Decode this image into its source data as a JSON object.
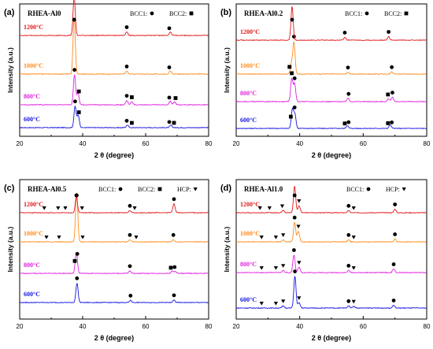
{
  "chart_data": [
    {
      "type": "line",
      "panel_label": "(a)",
      "sample": "RHEA-Al0",
      "xlabel": "2 θ (degree)",
      "ylabel": "Intensity (a.u.)",
      "xlim": [
        20,
        80
      ],
      "xticks": [
        20,
        40,
        60,
        80
      ],
      "legend_text": [
        "BCC1:",
        "BCC2:"
      ],
      "series": [
        {
          "name": "600°C",
          "color": "#1515e0",
          "peaks": [
            [
              37.6,
              0.6
            ],
            [
              38.6,
              0.35
            ],
            [
              54.2,
              0.07
            ],
            [
              68.0,
              0.07
            ]
          ],
          "markers": [
            [
              37.6,
              "circle"
            ],
            [
              38.8,
              "square"
            ],
            [
              54.0,
              "circle"
            ],
            [
              55.6,
              "square"
            ],
            [
              67.5,
              "circle"
            ],
            [
              69.0,
              "square"
            ]
          ]
        },
        {
          "name": "800°C",
          "color": "#e020e0",
          "peaks": [
            [
              37.4,
              0.85
            ],
            [
              38.5,
              0.35
            ],
            [
              54.0,
              0.12
            ],
            [
              55.6,
              0.08
            ],
            [
              67.8,
              0.1
            ],
            [
              69.2,
              0.08
            ]
          ],
          "markers": [
            [
              37.4,
              "circle"
            ],
            [
              38.8,
              "square"
            ],
            [
              54.0,
              "circle"
            ],
            [
              55.6,
              "square"
            ],
            [
              67.5,
              "circle"
            ],
            [
              69.5,
              "square"
            ]
          ]
        },
        {
          "name": "1000°C",
          "color": "#ff8c1a",
          "peaks": [
            [
              37.3,
              1.6
            ],
            [
              54.0,
              0.08
            ],
            [
              67.8,
              0.08
            ]
          ],
          "markers": [
            [
              37.3,
              "circle"
            ],
            [
              54.0,
              "circle"
            ],
            [
              67.5,
              "circle"
            ]
          ]
        },
        {
          "name": "1200°C",
          "color": "#e01818",
          "peaks": [
            [
              37.3,
              1.1
            ],
            [
              54.0,
              0.1
            ],
            [
              67.8,
              0.1
            ]
          ],
          "markers": [
            [
              37.3,
              "circle"
            ],
            [
              54.0,
              "circle"
            ],
            [
              67.5,
              "circle"
            ]
          ]
        }
      ]
    },
    {
      "type": "line",
      "panel_label": "(b)",
      "sample": "RHEA-Al0.2",
      "xlabel": "2 θ (degree)",
      "ylabel": "Intensity (a.u.)",
      "xlim": [
        20,
        80
      ],
      "xticks": [
        20,
        40,
        60,
        80
      ],
      "legend_text": [
        "BCC1:",
        "BCC2:"
      ],
      "series": [
        {
          "name": "600°C",
          "color": "#1515e0",
          "peaks": [
            [
              37.7,
              0.55
            ],
            [
              38.5,
              0.4
            ],
            [
              55.0,
              0.08
            ],
            [
              68.5,
              0.1
            ]
          ],
          "markers": [
            [
              37.2,
              "square"
            ],
            [
              38.4,
              "circle"
            ],
            [
              54.2,
              "square"
            ],
            [
              55.4,
              "circle"
            ],
            [
              67.8,
              "square"
            ],
            [
              69.0,
              "circle"
            ]
          ]
        },
        {
          "name": "800°C",
          "color": "#e020e0",
          "peaks": [
            [
              37.5,
              0.65
            ],
            [
              38.4,
              0.5
            ],
            [
              55.2,
              0.1
            ],
            [
              68.0,
              0.08
            ],
            [
              69.2,
              0.12
            ]
          ],
          "markers": [
            [
              37.5,
              "square"
            ],
            [
              38.4,
              "circle"
            ],
            [
              55.4,
              "circle"
            ],
            [
              67.8,
              "square"
            ],
            [
              69.2,
              "circle"
            ]
          ]
        },
        {
          "name": "1000°C",
          "color": "#ff8c1a",
          "peaks": [
            [
              37.4,
              0.3
            ],
            [
              38.2,
              0.9
            ],
            [
              55.2,
              0.05
            ],
            [
              69.0,
              0.06
            ]
          ],
          "markers": [
            [
              36.8,
              "square"
            ],
            [
              38.2,
              "circle"
            ],
            [
              55.2,
              "circle"
            ],
            [
              69.0,
              "circle"
            ]
          ]
        },
        {
          "name": "1200°C",
          "color": "#e01818",
          "peaks": [
            [
              37.6,
              0.95
            ],
            [
              54.2,
              0.08
            ],
            [
              68.0,
              0.1
            ]
          ],
          "markers": [
            [
              37.6,
              "circle"
            ],
            [
              54.2,
              "circle"
            ],
            [
              68.0,
              "circle"
            ]
          ]
        }
      ]
    },
    {
      "type": "line",
      "panel_label": "(c)",
      "sample": "RHEA-Al0.5",
      "xlabel": "2 θ (degree)",
      "ylabel": "Intensity (a.u.)",
      "xlim": [
        20,
        80
      ],
      "xticks": [
        20,
        40,
        60,
        80
      ],
      "legend_text": [
        "BCC1:",
        "BCC2:",
        "HCP:"
      ],
      "series": [
        {
          "name": "600°C",
          "color": "#1515e0",
          "peaks": [
            [
              38.2,
              0.55
            ],
            [
              55.2,
              0.06
            ],
            [
              69.0,
              0.07
            ]
          ],
          "markers": [
            [
              38.2,
              "circle"
            ],
            [
              55.2,
              "circle"
            ],
            [
              69.0,
              "circle"
            ]
          ]
        },
        {
          "name": "800°C",
          "color": "#e020e0",
          "peaks": [
            [
              38.0,
              0.6
            ],
            [
              55.0,
              0.07
            ],
            [
              68.5,
              0.07
            ],
            [
              69.5,
              0.05
            ]
          ],
          "markers": [
            [
              37.5,
              "square"
            ],
            [
              38.3,
              "circle"
            ],
            [
              55.0,
              "circle"
            ],
            [
              68.0,
              "square"
            ],
            [
              69.2,
              "circle"
            ]
          ]
        },
        {
          "name": "1000°C",
          "color": "#ff8c1a",
          "peaks": [
            [
              38.1,
              1.4
            ],
            [
              55.0,
              0.06
            ],
            [
              68.8,
              0.06
            ]
          ],
          "markers": [
            [
              28.5,
              "triangle"
            ],
            [
              32.5,
              "triangle"
            ],
            [
              38.1,
              "circle"
            ],
            [
              40.0,
              "triangle"
            ],
            [
              55.0,
              "circle"
            ],
            [
              57.0,
              "triangle"
            ],
            [
              68.8,
              "circle"
            ]
          ]
        },
        {
          "name": "1200°C",
          "color": "#e01818",
          "peaks": [
            [
              38.0,
              0.45
            ],
            [
              55.0,
              0.06
            ],
            [
              69.0,
              0.25
            ]
          ],
          "markers": [
            [
              27.8,
              "triangle"
            ],
            [
              32.2,
              "triangle"
            ],
            [
              34.5,
              "triangle"
            ],
            [
              38.0,
              "circle"
            ],
            [
              39.8,
              "triangle"
            ],
            [
              55.0,
              "circle"
            ],
            [
              56.5,
              "triangle"
            ],
            [
              69.0,
              "circle"
            ]
          ]
        }
      ]
    },
    {
      "type": "line",
      "panel_label": "(d)",
      "sample": "RHEA-Al1.0",
      "xlabel": "2 θ (degree)",
      "ylabel": "Intensity (a.u.)",
      "xlim": [
        20,
        80
      ],
      "xticks": [
        20,
        40,
        60,
        80
      ],
      "legend_text": [
        "BCC1:",
        "HCP:"
      ],
      "series": [
        {
          "name": "600°C",
          "color": "#1515e0",
          "peaks": [
            [
              34.8,
              0.06
            ],
            [
              38.5,
              0.9
            ],
            [
              39.8,
              0.15
            ],
            [
              55.4,
              0.06
            ],
            [
              57.0,
              0.05
            ],
            [
              69.6,
              0.08
            ]
          ],
          "markers": [
            [
              28.0,
              "triangle"
            ],
            [
              32.5,
              "triangle"
            ],
            [
              34.8,
              "triangle"
            ],
            [
              38.5,
              "circle"
            ],
            [
              39.8,
              "triangle"
            ],
            [
              55.4,
              "circle"
            ],
            [
              57.0,
              "triangle"
            ],
            [
              69.6,
              "circle"
            ]
          ]
        },
        {
          "name": "800°C",
          "color": "#e020e0",
          "peaks": [
            [
              34.8,
              0.06
            ],
            [
              38.2,
              0.5
            ],
            [
              39.8,
              0.15
            ],
            [
              55.4,
              0.06
            ],
            [
              69.6,
              0.1
            ]
          ],
          "markers": [
            [
              28.0,
              "triangle"
            ],
            [
              32.5,
              "triangle"
            ],
            [
              34.8,
              "triangle"
            ],
            [
              38.2,
              "circle"
            ],
            [
              39.8,
              "triangle"
            ],
            [
              55.4,
              "circle"
            ],
            [
              57.0,
              "triangle"
            ],
            [
              69.6,
              "circle"
            ]
          ]
        },
        {
          "name": "1000°C",
          "color": "#ff8c1a",
          "peaks": [
            [
              34.8,
              0.06
            ],
            [
              38.4,
              0.55
            ],
            [
              39.6,
              0.3
            ],
            [
              55.4,
              0.06
            ],
            [
              70.0,
              0.08
            ]
          ],
          "markers": [
            [
              28.0,
              "triangle"
            ],
            [
              32.5,
              "triangle"
            ],
            [
              34.8,
              "triangle"
            ],
            [
              38.4,
              "circle"
            ],
            [
              39.6,
              "triangle"
            ],
            [
              55.4,
              "circle"
            ],
            [
              57.0,
              "triangle"
            ],
            [
              70.0,
              "circle"
            ]
          ]
        },
        {
          "name": "1200°C",
          "color": "#e01818",
          "peaks": [
            [
              34.8,
              0.08
            ],
            [
              38.4,
              0.75
            ],
            [
              39.8,
              0.2
            ],
            [
              55.4,
              0.06
            ],
            [
              70.0,
              0.1
            ]
          ],
          "markers": [
            [
              27.5,
              "triangle"
            ],
            [
              30.5,
              "triangle"
            ],
            [
              34.5,
              "triangle"
            ],
            [
              38.4,
              "circle"
            ],
            [
              39.8,
              "triangle"
            ],
            [
              55.4,
              "circle"
            ],
            [
              57.0,
              "triangle"
            ],
            [
              70.0,
              "circle"
            ]
          ]
        }
      ]
    }
  ]
}
